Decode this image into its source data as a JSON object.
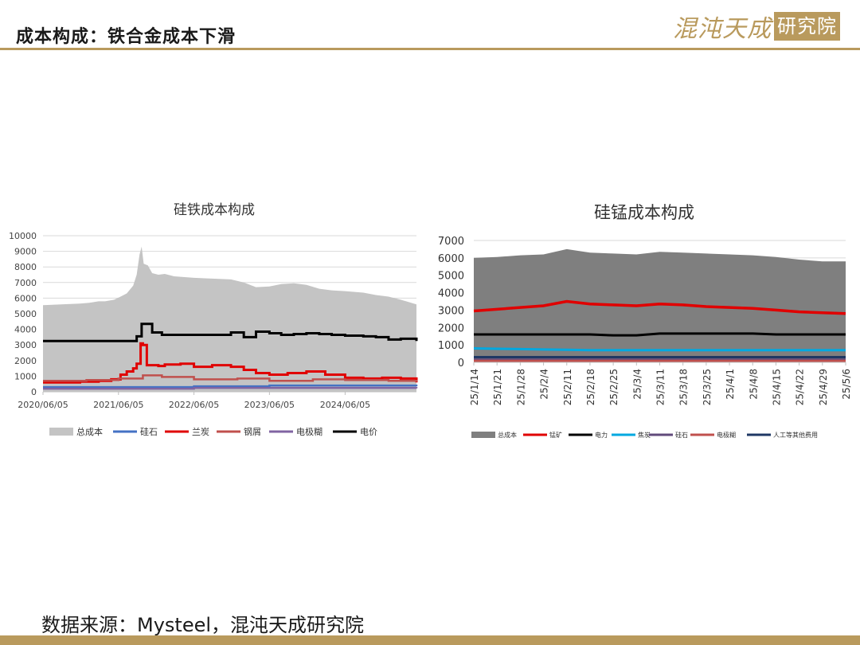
{
  "page": {
    "title": "成本构成：铁合金成本下滑",
    "logo_text": "混沌天成",
    "logo_box_text": "研究院",
    "source": "数据来源：Mysteel，混沌天成研究院"
  },
  "chart_data": [
    {
      "type": "area",
      "title": "硅铁成本构成",
      "ylim": [
        0,
        10000
      ],
      "yticks": [
        0,
        1000,
        2000,
        3000,
        4000,
        5000,
        6000,
        7000,
        8000,
        9000,
        10000
      ],
      "xlim": [
        "2020/06/05",
        "2025/05/16"
      ],
      "xticks": [
        "2020/06/05",
        "2021/06/05",
        "2022/06/05",
        "2023/06/05",
        "2024/06/05"
      ],
      "grid": true,
      "legend_position": "bottom",
      "series": [
        {
          "name": "总成本",
          "kind": "area",
          "color": "#c4c4c4",
          "x": [
            "2020/06/05",
            "2020/09/01",
            "2020/12/01",
            "2021/01/15",
            "2021/03/01",
            "2021/04/01",
            "2021/05/15",
            "2021/06/15",
            "2021/07/15",
            "2021/08/15",
            "2021/09/01",
            "2021/09/15",
            "2021/09/25",
            "2021/10/05",
            "2021/10/25",
            "2021/11/15",
            "2021/12/15",
            "2022/01/15",
            "2022/03/01",
            "2022/06/05",
            "2022/09/01",
            "2022/12/01",
            "2023/02/01",
            "2023/04/01",
            "2023/06/05",
            "2023/08/01",
            "2023/10/01",
            "2023/12/01",
            "2024/02/01",
            "2024/04/01",
            "2024/06/05",
            "2024/09/01",
            "2024/11/01",
            "2025/01/01",
            "2025/03/01",
            "2025/05/16"
          ],
          "values": [
            5550,
            5600,
            5650,
            5700,
            5800,
            5800,
            5900,
            6100,
            6300,
            6800,
            7500,
            8800,
            9300,
            8200,
            8100,
            7600,
            7500,
            7550,
            7400,
            7300,
            7250,
            7200,
            7000,
            6700,
            6750,
            6900,
            6950,
            6850,
            6600,
            6500,
            6450,
            6350,
            6200,
            6100,
            5900,
            5600
          ]
        },
        {
          "name": "硅石",
          "kind": "line",
          "color": "#4472c4",
          "x": [
            "2020/06/05",
            "2021/06/05",
            "2022/06/05",
            "2023/06/05",
            "2024/06/05",
            "2025/05/16"
          ],
          "values": [
            300,
            300,
            350,
            400,
            400,
            350
          ]
        },
        {
          "name": "兰炭",
          "kind": "line",
          "color": "#e00000",
          "x": [
            "2020/06/05",
            "2020/12/01",
            "2021/03/01",
            "2021/05/01",
            "2021/06/15",
            "2021/07/15",
            "2021/08/15",
            "2021/09/01",
            "2021/09/20",
            "2021/10/01",
            "2021/10/20",
            "2021/11/15",
            "2021/12/15",
            "2022/01/15",
            "2022/04/01",
            "2022/06/05",
            "2022/09/01",
            "2022/12/01",
            "2023/02/01",
            "2023/04/01",
            "2023/06/05",
            "2023/09/01",
            "2023/12/01",
            "2024/03/01",
            "2024/06/05",
            "2024/09/01",
            "2024/12/01",
            "2025/03/01",
            "2025/05/16"
          ],
          "values": [
            600,
            650,
            700,
            800,
            1100,
            1300,
            1500,
            1800,
            3100,
            3000,
            1700,
            1700,
            1650,
            1750,
            1800,
            1600,
            1700,
            1600,
            1400,
            1200,
            1100,
            1200,
            1300,
            1100,
            900,
            850,
            900,
            850,
            600
          ]
        },
        {
          "name": "钢屑",
          "kind": "line",
          "color": "#c0504d",
          "x": [
            "2020/06/05",
            "2021/01/01",
            "2021/06/05",
            "2021/10/01",
            "2022/01/01",
            "2022/06/05",
            "2023/01/01",
            "2023/06/05",
            "2024/01/01",
            "2024/06/05",
            "2025/01/01",
            "2025/05/16"
          ],
          "values": [
            700,
            750,
            850,
            1050,
            950,
            800,
            850,
            700,
            800,
            750,
            700,
            650
          ]
        },
        {
          "name": "电极糊",
          "kind": "line",
          "color": "#8064a2",
          "x": [
            "2020/06/05",
            "2021/06/05",
            "2022/06/05",
            "2023/06/05",
            "2024/06/05",
            "2025/05/16"
          ],
          "values": [
            200,
            200,
            250,
            250,
            250,
            220
          ]
        },
        {
          "name": "电价",
          "kind": "line",
          "color": "#000000",
          "x": [
            "2020/06/05",
            "2021/06/05",
            "2021/09/01",
            "2021/09/25",
            "2021/10/20",
            "2021/11/15",
            "2022/01/01",
            "2022/06/05",
            "2022/09/01",
            "2022/12/01",
            "2023/02/01",
            "2023/04/01",
            "2023/06/05",
            "2023/08/01",
            "2023/10/01",
            "2023/12/01",
            "2024/02/01",
            "2024/04/01",
            "2024/06/05",
            "2024/09/01",
            "2024/11/01",
            "2025/01/01",
            "2025/03/01",
            "2025/05/16"
          ],
          "values": [
            3250,
            3250,
            3550,
            4350,
            4350,
            3800,
            3650,
            3650,
            3650,
            3800,
            3500,
            3850,
            3750,
            3650,
            3700,
            3750,
            3700,
            3650,
            3600,
            3550,
            3500,
            3350,
            3400,
            3250
          ]
        }
      ]
    },
    {
      "type": "area",
      "title": "硅锰成本构成",
      "ylim": [
        0,
        7000
      ],
      "yticks": [
        0,
        1000,
        2000,
        3000,
        4000,
        5000,
        6000,
        7000
      ],
      "categories": [
        "25/1/14",
        "25/1/21",
        "25/1/28",
        "25/2/4",
        "25/2/11",
        "25/2/18",
        "25/2/25",
        "25/3/4",
        "25/3/11",
        "25/3/18",
        "25/3/25",
        "25/4/1",
        "25/4/8",
        "25/4/15",
        "25/4/22",
        "25/4/29",
        "25/5/6"
      ],
      "grid": true,
      "legend_position": "bottom",
      "series": [
        {
          "name": "总成本",
          "kind": "area",
          "color": "#7f7f7f",
          "values": [
            6000,
            6050,
            6150,
            6200,
            6500,
            6300,
            6250,
            6200,
            6350,
            6300,
            6250,
            6200,
            6150,
            6050,
            5900,
            5800,
            5800
          ]
        },
        {
          "name": "锰矿",
          "kind": "line",
          "color": "#e00000",
          "values": [
            2950,
            3050,
            3150,
            3250,
            3500,
            3350,
            3300,
            3250,
            3350,
            3300,
            3200,
            3150,
            3100,
            3000,
            2900,
            2850,
            2800
          ]
        },
        {
          "name": "电力",
          "kind": "line",
          "color": "#000000",
          "values": [
            1600,
            1600,
            1600,
            1600,
            1600,
            1600,
            1550,
            1550,
            1650,
            1650,
            1650,
            1650,
            1650,
            1600,
            1600,
            1600,
            1600
          ]
        },
        {
          "name": "焦炭",
          "kind": "line",
          "color": "#00a8e0",
          "values": [
            800,
            780,
            760,
            740,
            720,
            700,
            700,
            700,
            700,
            700,
            700,
            700,
            700,
            700,
            700,
            700,
            700
          ]
        },
        {
          "name": "硅石",
          "kind": "line",
          "color": "#604a7b",
          "values": [
            150,
            150,
            150,
            150,
            150,
            150,
            150,
            150,
            150,
            150,
            150,
            150,
            150,
            150,
            150,
            150,
            150
          ]
        },
        {
          "name": "电极糊",
          "kind": "line",
          "color": "#c0504d",
          "values": [
            80,
            80,
            80,
            80,
            80,
            80,
            80,
            80,
            80,
            80,
            80,
            80,
            80,
            80,
            80,
            80,
            80
          ]
        },
        {
          "name": "人工等其他费用",
          "kind": "line",
          "color": "#1f3864",
          "values": [
            300,
            300,
            300,
            300,
            300,
            300,
            300,
            300,
            300,
            300,
            300,
            300,
            300,
            300,
            300,
            300,
            300
          ]
        }
      ]
    }
  ]
}
